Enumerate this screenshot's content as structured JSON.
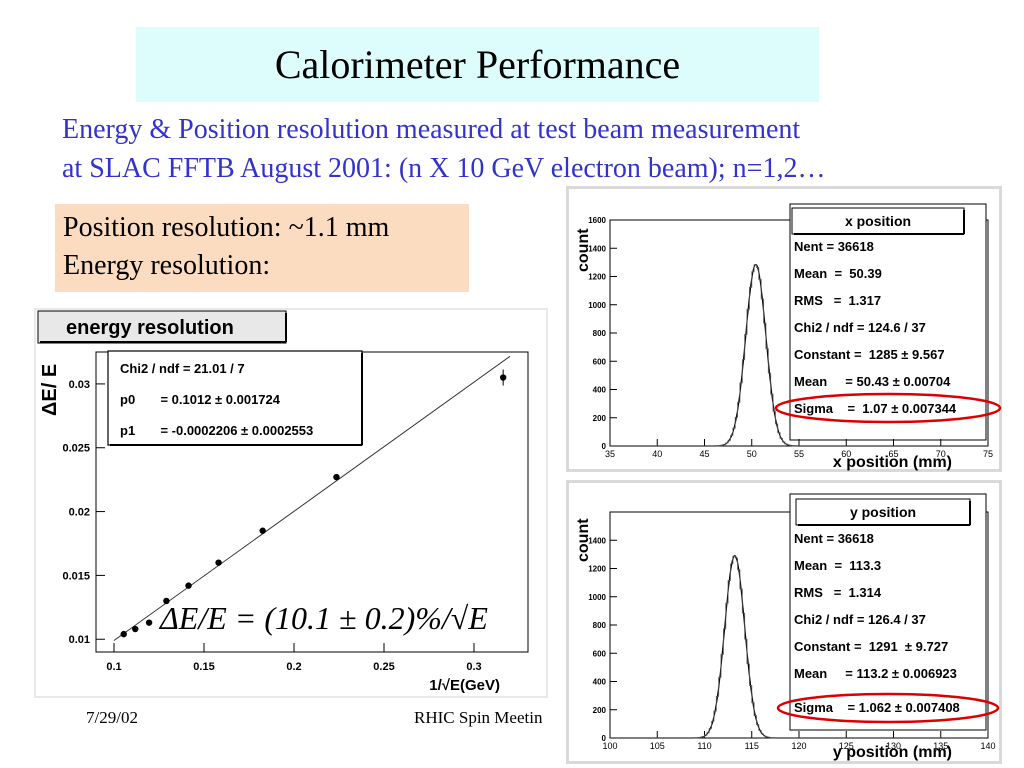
{
  "slide": {
    "title": "Calorimeter Performance",
    "subtitle_line1": "Energy & Position resolution measured at test beam measurement",
    "subtitle_line2": "at SLAC FFTB August 2001: (n X 10 GeV electron beam); n=1,2…",
    "position_resolution": "Position resolution: ~1.1 mm",
    "energy_resolution": "Energy resolution:",
    "formula": "ΔE/E = (10.1 ± 0.2)%/√E",
    "footer_date": "7/29/02",
    "footer_event": "RHIC Spin Meetin"
  },
  "colors": {
    "title_bg": "#ddfcfc",
    "subtitle_text": "#3333cc",
    "posbox_bg": "#fcdcc0",
    "highlight": "#dd0000"
  },
  "chart_data": [
    {
      "type": "scatter",
      "title": "energy resolution",
      "xlabel": "1/√E(GeV)",
      "ylabel": "ΔE/ E",
      "xlim": [
        0.09,
        0.33
      ],
      "ylim": [
        0.009,
        0.0325
      ],
      "x_ticks": [
        "0.1",
        "0.15",
        "0.2",
        "0.25",
        "0.3"
      ],
      "y_ticks": [
        "0.01",
        "0.015",
        "0.02",
        "0.025",
        "0.03"
      ],
      "points": [
        {
          "x": 0.1054,
          "y": 0.0104
        },
        {
          "x": 0.1118,
          "y": 0.0108
        },
        {
          "x": 0.1195,
          "y": 0.0113
        },
        {
          "x": 0.1291,
          "y": 0.013
        },
        {
          "x": 0.1414,
          "y": 0.0142
        },
        {
          "x": 0.1581,
          "y": 0.016
        },
        {
          "x": 0.1826,
          "y": 0.0185
        },
        {
          "x": 0.2236,
          "y": 0.0227
        },
        {
          "x": 0.3162,
          "y": 0.0305
        }
      ],
      "fit": {
        "p0": 0.1012,
        "p1": -0.0002206
      },
      "stats": [
        "Chi2 / ndf = 21.01 / 7",
        "p0       = 0.1012 ± 0.001724",
        "p1       = -0.0002206 ± 0.0002553"
      ]
    },
    {
      "type": "histogram",
      "title": "x position",
      "xlabel": "x position (mm)",
      "ylabel": "count",
      "xlim": [
        35,
        75
      ],
      "ylim": [
        0,
        1600
      ],
      "x_ticks": [
        "35",
        "40",
        "45",
        "50",
        "55",
        "60",
        "65",
        "70",
        "75"
      ],
      "y_ticks": [
        "0",
        "200",
        "400",
        "600",
        "800",
        "1000",
        "1200",
        "1400",
        "1600"
      ],
      "gauss": {
        "constant": 1285,
        "mean": 50.43,
        "sigma": 1.07
      },
      "stats": [
        "Nent = 36618",
        "Mean  =  50.39",
        "RMS   =  1.317",
        "Chi2 / ndf = 124.6 / 37",
        "Constant =  1285 ± 9.567",
        "Mean     = 50.43 ± 0.00704",
        "Sigma    =  1.07 ± 0.007344"
      ]
    },
    {
      "type": "histogram",
      "title": "y position",
      "xlabel": "y position (mm)",
      "ylabel": "count",
      "xlim": [
        100,
        140
      ],
      "ylim": [
        0,
        1600
      ],
      "x_ticks": [
        "100",
        "105",
        "110",
        "115",
        "120",
        "125",
        "130",
        "135",
        "140"
      ],
      "y_ticks": [
        "0",
        "200",
        "400",
        "600",
        "800",
        "1000",
        "1200",
        "1400"
      ],
      "gauss": {
        "constant": 1291,
        "mean": 113.2,
        "sigma": 1.062
      },
      "stats": [
        "Nent = 36618",
        "Mean  =  113.3",
        "RMS   =  1.314",
        "Chi2 / ndf = 126.4 / 37",
        "Constant =  1291  ± 9.727",
        "Mean     = 113.2 ± 0.006923",
        "Sigma    = 1.062 ± 0.007408"
      ]
    }
  ]
}
